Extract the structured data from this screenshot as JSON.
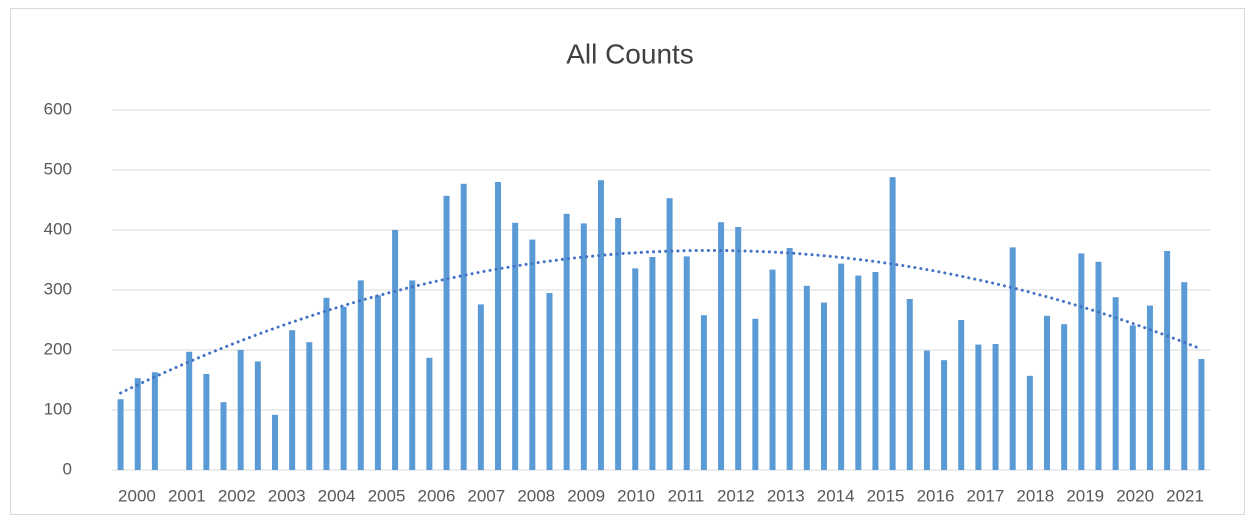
{
  "chart_data": {
    "type": "bar",
    "title": "All Counts",
    "year_labels": [
      "2000",
      "2001",
      "2002",
      "2003",
      "2004",
      "2005",
      "2006",
      "2007",
      "2008",
      "2009",
      "2010",
      "2011",
      "2012",
      "2013",
      "2014",
      "2015",
      "2016",
      "2017",
      "2018",
      "2019",
      "2020",
      "2021"
    ],
    "values": [
      118,
      153,
      163,
      null,
      197,
      160,
      113,
      200,
      181,
      92,
      233,
      213,
      287,
      272,
      316,
      291,
      400,
      316,
      187,
      457,
      477,
      276,
      480,
      412,
      384,
      295,
      427,
      411,
      483,
      420,
      336,
      355,
      453,
      356,
      258,
      413,
      405,
      252,
      334,
      370,
      307,
      279,
      344,
      324,
      330,
      488,
      285,
      199,
      183,
      250,
      209,
      210,
      371,
      157,
      257,
      243,
      361,
      347,
      288,
      241,
      274,
      365,
      313,
      185
    ],
    "color": "#5b9bd5",
    "ylim": [
      0,
      600
    ],
    "yticks": [
      0,
      100,
      200,
      300,
      400,
      500,
      600
    ],
    "grid": true,
    "trendline": "polynomial",
    "trendline_color": "#4472c4"
  }
}
